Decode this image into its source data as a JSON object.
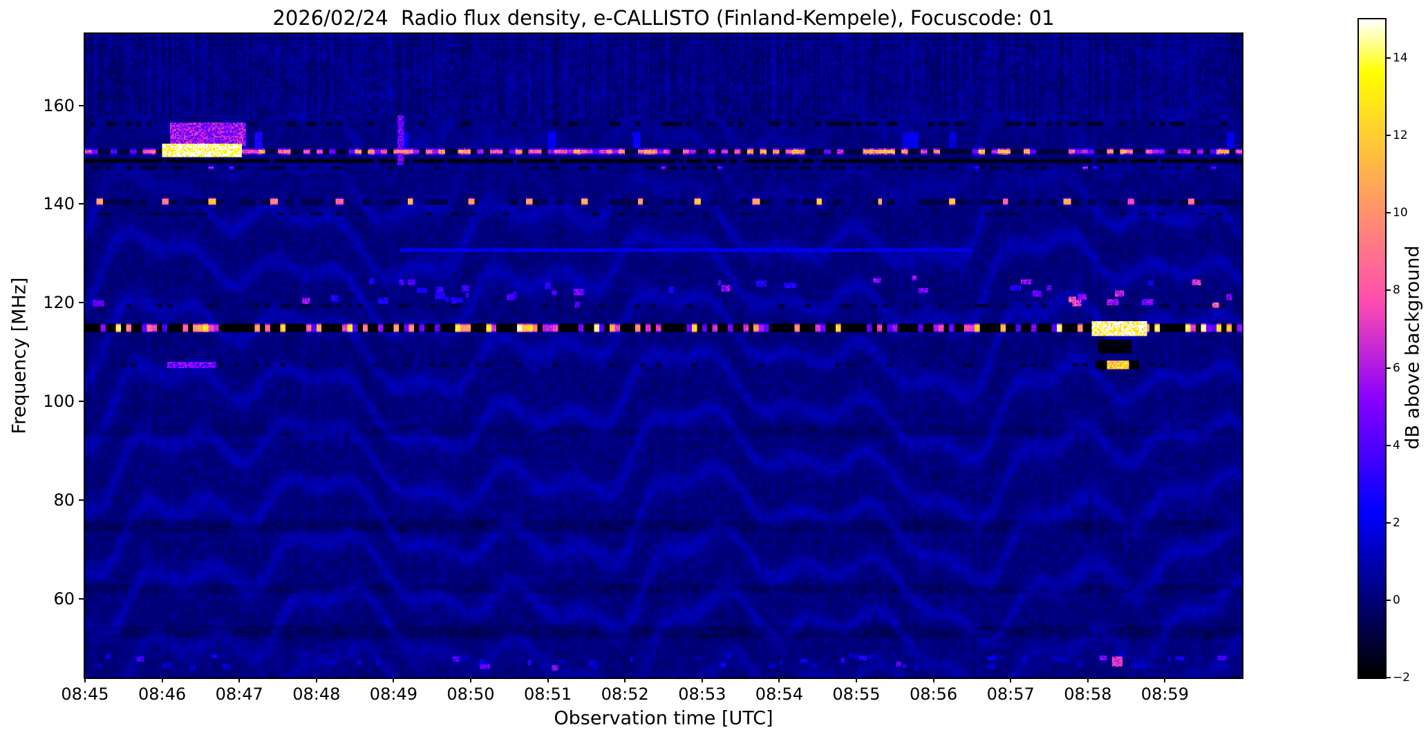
{
  "chart_data": {
    "type": "heatmap",
    "title": "2026/02/24  Radio flux density, e-CALLISTO (Finland-Kempele), Focuscode: 01",
    "xlabel": "Observation time [UTC]",
    "ylabel": "Frequency [MHz]",
    "colorbar_label": "dB above background",
    "colormap": "gnuplot2",
    "duration_s": 900,
    "x_tick_interval_s": 60,
    "x_tick_labels": [
      "08:45",
      "08:46",
      "08:47",
      "08:48",
      "08:49",
      "08:50",
      "08:51",
      "08:52",
      "08:53",
      "08:54",
      "08:55",
      "08:56",
      "08:57",
      "08:58",
      "08:59"
    ],
    "freq_range_mhz": [
      44.0,
      174.5
    ],
    "y_ticks_mhz": [
      160,
      140,
      120,
      100,
      80,
      60
    ],
    "value_range_db": [
      -2,
      15
    ],
    "colorbar_ticks_db": [
      {
        "v": 14,
        "label": "14"
      },
      {
        "v": 12,
        "label": "12"
      },
      {
        "v": 10,
        "label": "10"
      },
      {
        "v": 8,
        "label": "8"
      },
      {
        "v": 6,
        "label": "6"
      },
      {
        "v": 4,
        "label": "4"
      },
      {
        "v": 2,
        "label": "2"
      },
      {
        "v": 0,
        "label": "0"
      },
      {
        "v": -2,
        "label": "−2"
      }
    ],
    "background": {
      "base_db": 0.15,
      "noise_db": 0.35,
      "ripple_db": 0.5
    },
    "features": [
      {
        "kind": "vstripes",
        "f0": 157.5,
        "f1": 174.5,
        "amp": 0.55,
        "speckle": 1.1,
        "note": "vertically striped noise band at top of spectrum"
      },
      {
        "kind": "band",
        "f0": 52,
        "f1": 54.5,
        "level": -0.45
      },
      {
        "kind": "band",
        "f0": 61,
        "f1": 63,
        "level": -0.35
      },
      {
        "kind": "band",
        "f0": 73.5,
        "f1": 76,
        "level": -0.4
      },
      {
        "kind": "band",
        "f0": 93,
        "f1": 95,
        "level": -0.3
      },
      {
        "kind": "hline",
        "f": 156.2,
        "hw": 0.5,
        "seg": 4,
        "duty": 0.3,
        "lo": -1.6,
        "hi": -1.2,
        "note": "dark dashed line ~156 MHz"
      },
      {
        "kind": "hline",
        "f": 153.0,
        "hw": 1.8,
        "seg": 6,
        "duty": 0.08,
        "lo": 1.5,
        "hi": 4,
        "note": "sporadic faint emission 151-155 MHz"
      },
      {
        "kind": "patch",
        "t0": 66,
        "t1": 125,
        "f0": 151.8,
        "f1": 156.6,
        "level": 5.5,
        "grain": 0.8,
        "note": "magenta patch 08:46-08:47"
      },
      {
        "kind": "hline",
        "f": 150.6,
        "hw": 0.6,
        "seg": 3,
        "duty": 1,
        "lo": -1.3,
        "hi": -0.7
      },
      {
        "kind": "hline",
        "f": 150.6,
        "hw": 0.6,
        "seg": 5,
        "duty": 0.55,
        "lo": 4,
        "hi": 12,
        "note": "bright intermittent RFI line ~150.5 MHz"
      },
      {
        "kind": "patch",
        "t0": 60,
        "t1": 122,
        "f0": 149.4,
        "f1": 152.2,
        "level": 14.5,
        "grain": 0.35,
        "note": "white-hot saturation 08:46-08:47"
      },
      {
        "kind": "hline",
        "f": 148.8,
        "hw": 0.45,
        "seg": 3,
        "duty": 0.9,
        "lo": -2,
        "hi": -1.6,
        "note": "black line under RFI line"
      },
      {
        "kind": "hline",
        "f": 147.4,
        "hw": 0.4,
        "seg": 4,
        "duty": 0.3,
        "lo": -1.7,
        "hi": -1.3
      },
      {
        "kind": "hline",
        "f": 147.4,
        "hw": 0.4,
        "seg": 4,
        "duty": 0.05,
        "lo": 3,
        "hi": 7
      },
      {
        "kind": "patch",
        "t0": 243,
        "t1": 248,
        "f0": 148,
        "f1": 158,
        "level": 4.5,
        "grain": 0.7,
        "note": "vertical streak 08:49"
      },
      {
        "kind": "hline",
        "f": 140.4,
        "hw": 0.55,
        "seg": 6,
        "duty": 0.5,
        "lo": -1.0,
        "hi": -0.6
      },
      {
        "kind": "dots",
        "f": 140.4,
        "hw": 0.75,
        "period": 47,
        "phase": 12,
        "jitter": 14,
        "width": 5,
        "level": 10.5,
        "note": "periodic bright dots ~140.4 MHz"
      },
      {
        "kind": "hline",
        "f": 138.0,
        "hw": 0.3,
        "seg": 5,
        "duty": 0.22,
        "lo": -1.3,
        "hi": -0.9
      },
      {
        "kind": "patch",
        "t0": 245,
        "t1": 690,
        "f0": 130.3,
        "f1": 130.9,
        "level": 1.9,
        "grain": 0.7,
        "note": "faint horizontal drift line ~130.6 MHz"
      },
      {
        "kind": "hline",
        "f": 119.4,
        "hw": 0.3,
        "seg": 4,
        "duty": 0.2,
        "lo": -1.4,
        "hi": -1.0
      },
      {
        "kind": "blips",
        "f0": 119.5,
        "f1": 125,
        "n": 26,
        "w": 6,
        "h": 1.1,
        "lo": 2.5,
        "hi": 7,
        "seed": 7,
        "note": "scattered RFI blips 120-125 MHz"
      },
      {
        "kind": "blips",
        "f0": 120,
        "f1": 124.5,
        "n": 10,
        "w": 6,
        "h": 1.2,
        "lo": 3,
        "hi": 8,
        "seed": 13,
        "t0": 170,
        "t1": 460
      },
      {
        "kind": "blips",
        "f0": 119.5,
        "f1": 123,
        "n": 8,
        "w": 7,
        "h": 1.2,
        "lo": 4,
        "hi": 9,
        "seed": 19,
        "t0": 760,
        "t1": 898
      },
      {
        "kind": "bursty",
        "f0": 113.9,
        "f1": 115.7,
        "base": -1.9,
        "seg": 4,
        "duty": 0.42,
        "lo": 4,
        "hi": 15,
        "note": "black RFI band with bright bursts ~115 MHz"
      },
      {
        "kind": "patch",
        "t0": 783,
        "t1": 826,
        "f0": 113.2,
        "f1": 116.3,
        "level": 15,
        "grain": 0.5,
        "note": "intense white-yellow burst 08:58"
      },
      {
        "kind": "patch",
        "t0": 788,
        "t1": 814,
        "f0": 109.8,
        "f1": 112.6,
        "level": -1.8,
        "grain": 0,
        "note": "dark patch below burst"
      },
      {
        "kind": "hline",
        "f": 107.4,
        "hw": 0.35,
        "seg": 4,
        "duty": 0.18,
        "lo": -1.3,
        "hi": -0.9
      },
      {
        "kind": "patch",
        "t0": 64,
        "t1": 102,
        "f0": 106.7,
        "f1": 108.0,
        "level": 4.5,
        "grain": 0.9,
        "note": "magenta dashes 08:46 ~107 MHz"
      },
      {
        "kind": "patch",
        "t0": 786,
        "t1": 795,
        "f0": 106.4,
        "f1": 108.2,
        "level": -2,
        "grain": 0
      },
      {
        "kind": "patch",
        "t0": 795,
        "t1": 812,
        "f0": 106.4,
        "f1": 108.2,
        "level": 12,
        "grain": 0.4,
        "note": "yellow burst 08:58 ~107 MHz"
      },
      {
        "kind": "patch",
        "t0": 812,
        "t1": 820,
        "f0": 106.4,
        "f1": 108.2,
        "level": -2,
        "grain": 0
      },
      {
        "kind": "blips",
        "f0": 45.8,
        "f1": 48.5,
        "n": 42,
        "w": 5,
        "h": 0.9,
        "lo": 1.2,
        "hi": 3.5,
        "seed": 23,
        "note": "weak blips along bottom edge"
      },
      {
        "kind": "blips",
        "f0": 46,
        "f1": 48.5,
        "n": 10,
        "w": 5,
        "h": 1.0,
        "lo": 3,
        "hi": 5.5,
        "seed": 31
      },
      {
        "kind": "patch",
        "t0": 799,
        "t1": 807,
        "f0": 46.3,
        "f1": 48.2,
        "level": 7,
        "grain": 0.4,
        "note": "magenta blip 08:58 bottom"
      }
    ]
  }
}
